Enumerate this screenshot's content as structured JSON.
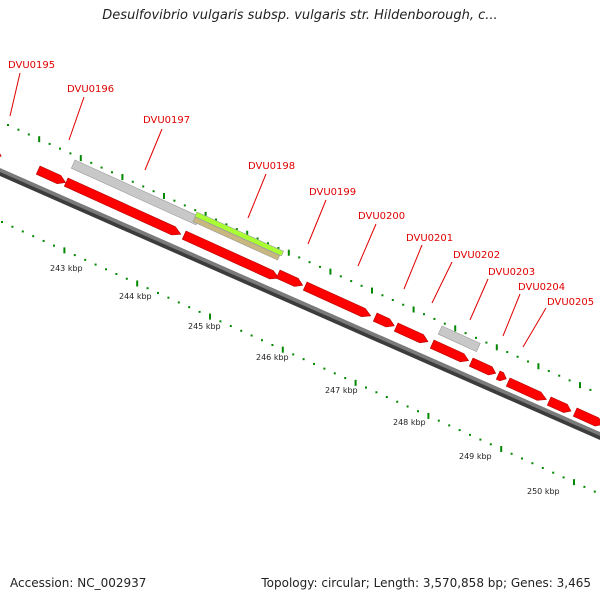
{
  "title": "Desulfovibrio vulgaris subsp. vulgaris str. Hildenborough, c...",
  "footer": {
    "accession": "Accession: NC_002937",
    "summary": "Topology: circular; Length: 3,570,858 bp; Genes: 3,465"
  },
  "colors": {
    "gene": "#ff0000",
    "gene_dark": "#b40000",
    "pseudo": "#c8c8c8",
    "highlight": "#aaff33",
    "highlight_lower": "#c8b880",
    "backbone": "#555555",
    "tick": "#008800",
    "label": "#e00000"
  },
  "gene_labels": [
    "DVU0195",
    "DVU0196",
    "DVU0197",
    "DVU0198",
    "DVU0199",
    "DVU0200",
    "DVU0201",
    "DVU0202",
    "DVU0203",
    "DVU0204",
    "DVU0205"
  ],
  "kbp_labels": [
    "243 kbp",
    "244 kbp",
    "245 kbp",
    "246 kbp",
    "247 kbp",
    "248 kbp",
    "249 kbp",
    "250 kbp"
  ]
}
